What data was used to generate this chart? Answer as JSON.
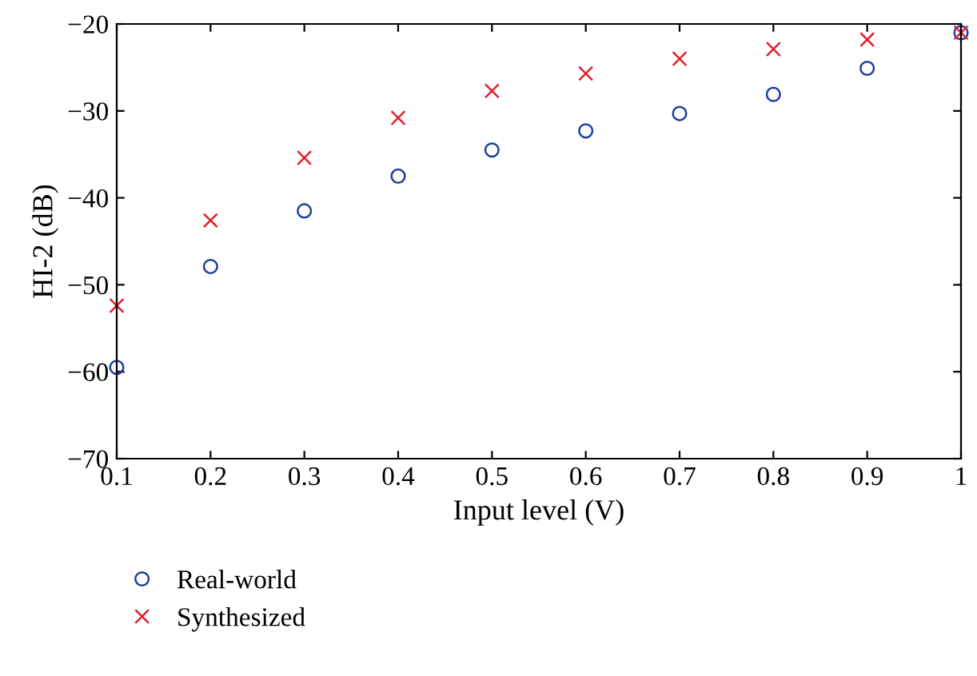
{
  "chart_data": {
    "type": "scatter",
    "xlabel": "Input level (V)",
    "ylabel": "HI-2 (dB)",
    "x": [
      0.1,
      0.2,
      0.3,
      0.4,
      0.5,
      0.6,
      0.7,
      0.8,
      0.9,
      1
    ],
    "series": [
      {
        "name": "Real-world",
        "color": "#1f3fa0",
        "marker": "circle",
        "values": [
          -59.5,
          -47.9,
          -41.5,
          -37.5,
          -34.5,
          -32.3,
          -30.3,
          -28.1,
          -25.1,
          -21
        ]
      },
      {
        "name": "Synthesized",
        "color": "#e0202a",
        "marker": "cross",
        "values": [
          -52.4,
          -42.6,
          -35.4,
          -30.8,
          -27.7,
          -25.7,
          -24.0,
          -22.9,
          -21.8,
          -21
        ]
      }
    ],
    "xlim": [
      0.1,
      1
    ],
    "xticks": [
      0.1,
      0.2,
      0.3,
      0.4,
      0.5,
      0.6,
      0.7,
      0.8,
      0.9,
      {
        "value": 1,
        "label": "1"
      }
    ],
    "ylim": [
      -70,
      -20
    ],
    "yticks": [
      -70,
      -60,
      -50,
      -40,
      -30,
      -20
    ],
    "grid": false,
    "legend": "bottom left"
  }
}
